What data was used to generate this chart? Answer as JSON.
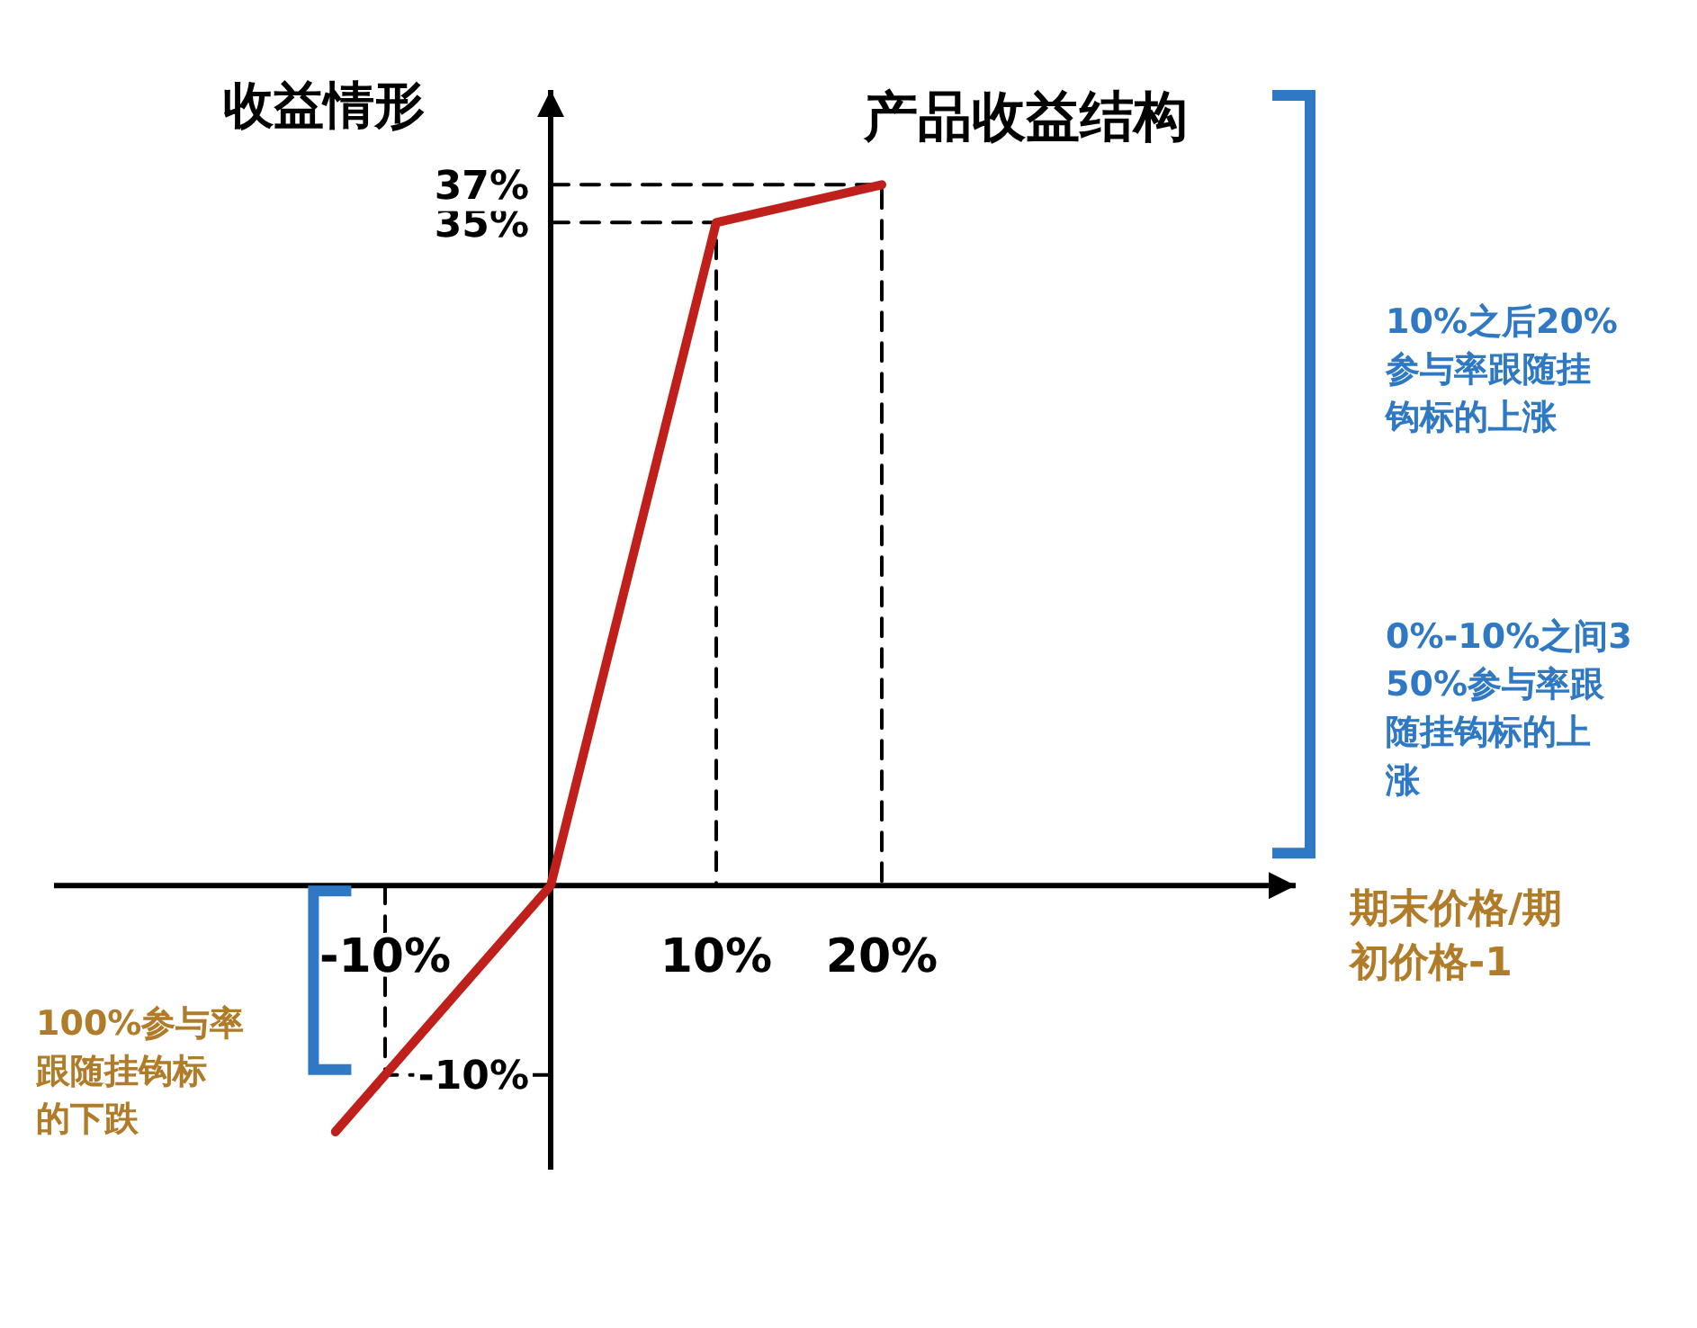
{
  "chart_data": {
    "type": "line",
    "title": "产品收益结构",
    "ylabel": "收益情形",
    "xlabel": "期末价格/期初价格-1",
    "xlim": [
      -30,
      45
    ],
    "ylim": [
      -15,
      42
    ],
    "xticks": [
      {
        "value": -10,
        "label": "-10%"
      },
      {
        "value": 10,
        "label": "10%"
      },
      {
        "value": 20,
        "label": "20%"
      }
    ],
    "yticks": [
      {
        "value": -10,
        "label": "-10%"
      },
      {
        "value": 35,
        "label": "35%"
      },
      {
        "value": 37,
        "label": "37%"
      }
    ],
    "series": [
      {
        "color": "#c0201c",
        "x": [
          -13,
          0,
          10,
          20
        ],
        "values": [
          -13,
          0,
          35,
          37
        ]
      },
      {
        "type": "line",
        "line_style": "dashed",
        "color": "#000000",
        "x": [
          0,
          20,
          20
        ],
        "values": [
          37,
          37,
          0
        ]
      },
      {
        "type": "line",
        "line_style": "dashed",
        "color": "#000000",
        "x": [
          0,
          10,
          10
        ],
        "values": [
          35,
          35,
          0
        ]
      },
      {
        "type": "line",
        "line_style": "dashed",
        "color": "#000000",
        "x": [
          -10,
          -10,
          0
        ],
        "values": [
          0,
          -10,
          -10
        ]
      }
    ],
    "annotations": [
      "10%之后20%参与率跟随挂钩标的上涨",
      "0%-10%之间350%参与率跟随挂钩标的上涨",
      "100%参与率跟随挂钩标的下跌"
    ],
    "marker": "none"
  }
}
